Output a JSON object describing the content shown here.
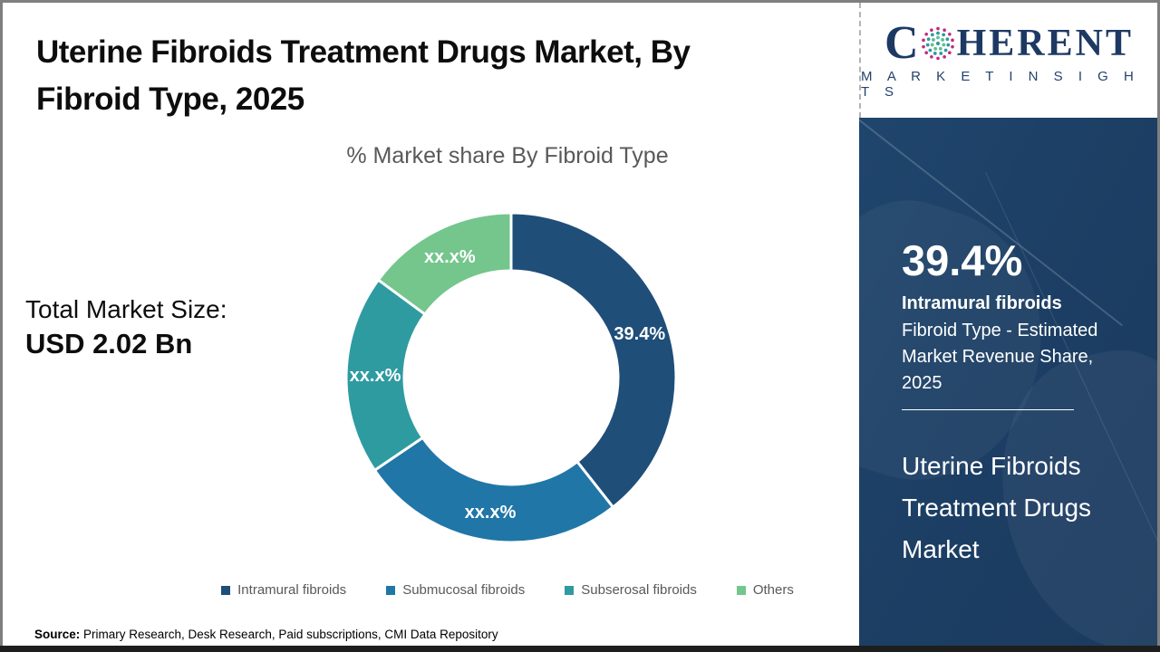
{
  "page": {
    "title_line1": "Uterine Fibroids Treatment Drugs Market, By",
    "title_line2": "Fibroid Type, 2025",
    "source_label": "Source:",
    "source_text": " Primary Research, Desk Research, Paid subscriptions, CMI Data Repository"
  },
  "logo": {
    "brand_first_letter": "C",
    "brand_rest": "HERENT",
    "tagline": "M A R K E T   I N S I G H T S",
    "navy": "#1d3963",
    "globe_ring_colors": [
      "#c22a7d",
      "#2e9ba1",
      "#5fbf8f"
    ]
  },
  "stats": {
    "total_label": "Total Market Size:",
    "total_value": "USD 2.02 Bn"
  },
  "chart_data": {
    "type": "pie",
    "subtype": "donut",
    "title": "% Market share By Fibroid Type",
    "categories": [
      "Intramural fibroids",
      "Submucosal fibroids",
      "Subserosal fibroids",
      "Others"
    ],
    "values": [
      39.4,
      26.1,
      19.6,
      14.9
    ],
    "display_labels": [
      "39.4%",
      "xx.x%",
      "xx.x%",
      "xx.x%"
    ],
    "colors": [
      "#1f4e79",
      "#2076a7",
      "#2e9ba1",
      "#74c68c"
    ],
    "start_angle_deg": 0,
    "inner_radius_ratio": 0.65,
    "legend_position": "bottom",
    "label_color": "#ffffff"
  },
  "sidebar": {
    "highlight_value": "39.4%",
    "highlight_name": "Intramural fibroids",
    "highlight_desc": "Fibroid Type - Estimated Market Revenue Share, 2025",
    "market_name": "Uterine Fibroids Treatment Drugs Market",
    "bg_color": "#1d4066"
  }
}
